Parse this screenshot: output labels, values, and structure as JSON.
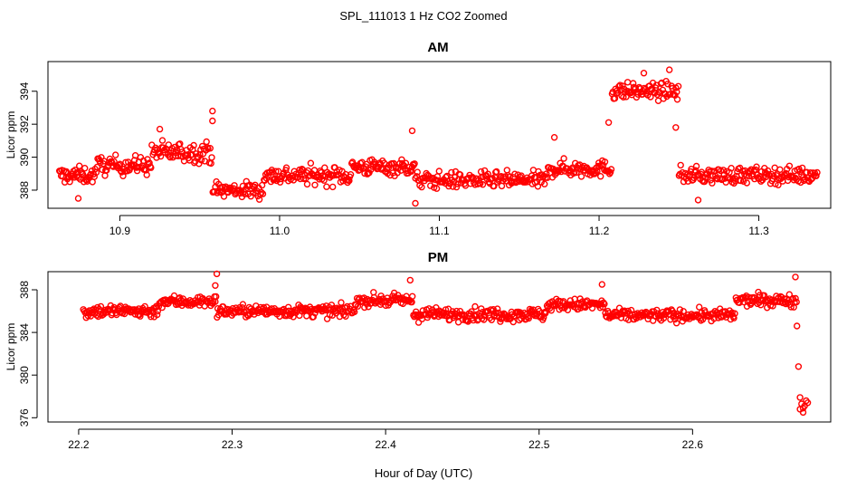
{
  "figure": {
    "title": "SPL_111013  1 Hz CO2 Zoomed",
    "xlabel": "Hour of Day (UTC)"
  },
  "colors": {
    "points": "#ff0000",
    "axes": "#000000",
    "background": "#ffffff"
  },
  "chart_data": [
    {
      "type": "scatter",
      "title": "AM",
      "xlabel": "Hour of Day (UTC)",
      "ylabel": "Licor ppm",
      "xlim": [
        10.855,
        11.345
      ],
      "ylim": [
        386.9,
        395.8
      ],
      "xticks": [
        10.9,
        11.0,
        11.1,
        11.2,
        11.3
      ],
      "yticks": [
        388,
        390,
        392,
        394
      ],
      "marker": "open-circle",
      "segments": [
        {
          "x0": 10.862,
          "x1": 10.885,
          "mean": 388.9,
          "spread": 0.45
        },
        {
          "x0": 10.885,
          "x1": 10.92,
          "mean": 389.5,
          "spread": 0.5
        },
        {
          "x0": 10.92,
          "x1": 10.958,
          "mean": 390.3,
          "spread": 0.55
        },
        {
          "x0": 10.958,
          "x1": 10.99,
          "mean": 388.0,
          "spread": 0.45
        },
        {
          "x0": 10.99,
          "x1": 11.045,
          "mean": 388.9,
          "spread": 0.5
        },
        {
          "x0": 11.045,
          "x1": 11.085,
          "mean": 389.4,
          "spread": 0.45
        },
        {
          "x0": 11.085,
          "x1": 11.168,
          "mean": 388.6,
          "spread": 0.45
        },
        {
          "x0": 11.168,
          "x1": 11.208,
          "mean": 389.3,
          "spread": 0.45
        },
        {
          "x0": 11.208,
          "x1": 11.25,
          "mean": 394.0,
          "spread": 0.45
        },
        {
          "x0": 11.25,
          "x1": 11.337,
          "mean": 388.9,
          "spread": 0.45
        }
      ],
      "highlights": [
        {
          "x": 10.925,
          "y": 391.7
        },
        {
          "x": 10.958,
          "y": 392.8
        },
        {
          "x": 10.958,
          "y": 392.2
        },
        {
          "x": 11.083,
          "y": 391.6
        },
        {
          "x": 11.085,
          "y": 387.2
        },
        {
          "x": 11.172,
          "y": 391.2
        },
        {
          "x": 11.206,
          "y": 392.1
        },
        {
          "x": 11.248,
          "y": 391.8
        },
        {
          "x": 11.244,
          "y": 395.3
        },
        {
          "x": 11.228,
          "y": 395.1
        },
        {
          "x": 10.874,
          "y": 387.5
        },
        {
          "x": 11.262,
          "y": 387.4
        }
      ]
    },
    {
      "type": "scatter",
      "title": "PM",
      "xlabel": "Hour of Day (UTC)",
      "ylabel": "Licor ppm",
      "xlim": [
        22.18,
        22.69
      ],
      "ylim": [
        375.6,
        389.7
      ],
      "xticks": [
        22.2,
        22.3,
        22.4,
        22.5,
        22.6
      ],
      "yticks": [
        376,
        380,
        384,
        388
      ],
      "marker": "open-circle",
      "segments": [
        {
          "x0": 22.203,
          "x1": 22.252,
          "mean": 386.0,
          "spread": 0.55
        },
        {
          "x0": 22.252,
          "x1": 22.29,
          "mean": 386.9,
          "spread": 0.5
        },
        {
          "x0": 22.29,
          "x1": 22.38,
          "mean": 386.0,
          "spread": 0.5
        },
        {
          "x0": 22.38,
          "x1": 22.418,
          "mean": 387.0,
          "spread": 0.5
        },
        {
          "x0": 22.418,
          "x1": 22.505,
          "mean": 385.7,
          "spread": 0.55
        },
        {
          "x0": 22.505,
          "x1": 22.543,
          "mean": 386.6,
          "spread": 0.5
        },
        {
          "x0": 22.543,
          "x1": 22.628,
          "mean": 385.6,
          "spread": 0.5
        },
        {
          "x0": 22.628,
          "x1": 22.668,
          "mean": 387.0,
          "spread": 0.5
        }
      ],
      "highlights": [
        {
          "x": 22.29,
          "y": 389.5
        },
        {
          "x": 22.289,
          "y": 388.4
        },
        {
          "x": 22.416,
          "y": 388.9
        },
        {
          "x": 22.541,
          "y": 388.5
        },
        {
          "x": 22.667,
          "y": 389.2
        },
        {
          "x": 22.668,
          "y": 384.6
        },
        {
          "x": 22.669,
          "y": 380.8
        },
        {
          "x": 22.67,
          "y": 377.9
        },
        {
          "x": 22.671,
          "y": 377.3
        },
        {
          "x": 22.672,
          "y": 376.9
        },
        {
          "x": 22.672,
          "y": 376.5
        },
        {
          "x": 22.673,
          "y": 377.1
        },
        {
          "x": 22.674,
          "y": 377.6
        },
        {
          "x": 22.67,
          "y": 376.8
        },
        {
          "x": 22.675,
          "y": 377.4
        }
      ]
    }
  ]
}
